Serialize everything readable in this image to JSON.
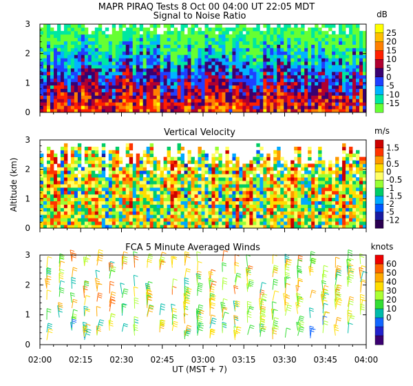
{
  "header": {
    "line1": "MAPR PIRAQ Tests   8 Oct 00   04:00 UT   22:05   MDT"
  },
  "chart_data": [
    {
      "type": "heatmap",
      "title": "Signal to Noise Ratio",
      "units": "dB",
      "ylim": [
        0,
        3
      ],
      "yticks": [
        "0",
        "1",
        "2",
        "3"
      ],
      "colorbar": {
        "labels": [
          "25",
          "20",
          "15",
          "10",
          "5",
          "0",
          "-5",
          "-10",
          "-15"
        ],
        "colors": [
          "#ffff00",
          "#ffbf00",
          "#ff7f00",
          "#ff2000",
          "#b00030",
          "#3a0070",
          "#1f3fff",
          "#00b4ff",
          "#00e8a0",
          "#66ff33"
        ]
      }
    },
    {
      "type": "heatmap",
      "title": "Vertical Velocity",
      "units": "m/s",
      "ylabel": "Altitude (km)",
      "ylim": [
        0,
        3
      ],
      "yticks": [
        "0",
        "1",
        "2",
        "3"
      ],
      "colorbar": {
        "labels": [
          "1.5",
          "1",
          "0.5",
          "0",
          "-0.5",
          "-1",
          "-1.5",
          "-2",
          "-5",
          "-12"
        ],
        "colors": [
          "#cc0000",
          "#ff3300",
          "#ff9900",
          "#ffdd00",
          "#ffff66",
          "#99ff33",
          "#00cc66",
          "#00aaff",
          "#0055ff",
          "#1a1aa0",
          "#2a0050"
        ]
      }
    },
    {
      "type": "scatter",
      "title": "FCA 5 Minute Averaged Winds",
      "units": "knots",
      "ylim": [
        0,
        3
      ],
      "yticks": [
        "0",
        "1",
        "2",
        "3"
      ],
      "colorbar": {
        "labels": [
          "60",
          "50",
          "40",
          "30",
          "20",
          "10",
          "0"
        ],
        "colors": [
          "#ee0000",
          "#ff6600",
          "#ffaa00",
          "#ffdd00",
          "#aaff33",
          "#33dd33",
          "#00bbaa",
          "#1166ff",
          "#2222cc",
          "#3a0070"
        ]
      }
    }
  ],
  "xaxis": {
    "label": "UT  (MST + 7)",
    "ticks": [
      "02:00",
      "02:15",
      "02:30",
      "02:45",
      "03:00",
      "03:15",
      "03:30",
      "03:45",
      "04:00"
    ]
  }
}
